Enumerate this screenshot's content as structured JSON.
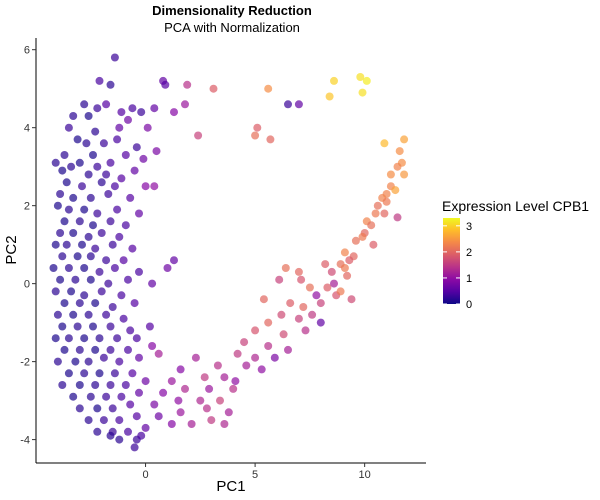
{
  "chart_data": {
    "type": "scatter",
    "title": "Dimensionality Reduction",
    "subtitle": "PCA with Normalization",
    "xlabel": "PC1",
    "ylabel": "PC2",
    "xlim": [
      -5,
      12.8
    ],
    "ylim": [
      -4.6,
      6.3
    ],
    "xticks": [
      0,
      5,
      10
    ],
    "yticks": [
      -4,
      -2,
      0,
      2,
      4,
      6
    ],
    "grid": false,
    "color_scale": {
      "name": "plasma",
      "title": "Expression Level CPB1",
      "range": [
        0,
        3.3
      ],
      "ticks": [
        0,
        1,
        2,
        3
      ],
      "stops": [
        "#0d0887",
        "#5302a3",
        "#8b0aa5",
        "#b83289",
        "#db5c68",
        "#f48849",
        "#febc2a",
        "#f0f921"
      ]
    },
    "legend_position": "right",
    "points": [
      [
        -1.4,
        5.8,
        0.3
      ],
      [
        -2.1,
        5.2,
        0.4
      ],
      [
        -1.6,
        5.1,
        0.2
      ],
      [
        0.8,
        5.2,
        0.6
      ],
      [
        0.9,
        5.1,
        0.5
      ],
      [
        1.9,
        5.1,
        1.4
      ],
      [
        3.1,
        5.0,
        1.9
      ],
      [
        5.6,
        5.0,
        2.4
      ],
      [
        8.6,
        5.2,
        3.0
      ],
      [
        9.8,
        5.3,
        3.1
      ],
      [
        10.1,
        5.2,
        3.2
      ],
      [
        8.4,
        4.8,
        2.9
      ],
      [
        9.9,
        4.9,
        3.1
      ],
      [
        6.5,
        4.6,
        0.3
      ],
      [
        7.0,
        4.6,
        0.6
      ],
      [
        -2.8,
        4.6,
        0.2
      ],
      [
        -2.2,
        4.5,
        0.3
      ],
      [
        -1.8,
        4.6,
        0.5
      ],
      [
        -0.6,
        4.5,
        0.4
      ],
      [
        -0.2,
        4.4,
        0.3
      ],
      [
        0.4,
        4.5,
        0.6
      ],
      [
        1.3,
        4.4,
        0.9
      ],
      [
        1.8,
        4.6,
        1.1
      ],
      [
        -3.3,
        4.3,
        0.2
      ],
      [
        -2.6,
        4.3,
        0.1
      ],
      [
        -1.1,
        4.4,
        0.5
      ],
      [
        -0.8,
        4.2,
        0.7
      ],
      [
        -3.5,
        4.0,
        0.3
      ],
      [
        -2.3,
        3.9,
        0.2
      ],
      [
        -1.2,
        4.0,
        0.6
      ],
      [
        0.1,
        4.0,
        0.8
      ],
      [
        2.4,
        3.8,
        1.6
      ],
      [
        5.1,
        4.0,
        1.9
      ],
      [
        5.0,
        3.8,
        2.1
      ],
      [
        5.7,
        3.7,
        2.0
      ],
      [
        11.8,
        3.7,
        2.6
      ],
      [
        11.6,
        3.4,
        2.4
      ],
      [
        10.9,
        3.6,
        2.8
      ],
      [
        -3.1,
        3.7,
        0.1
      ],
      [
        -2.7,
        3.6,
        0.2
      ],
      [
        -1.9,
        3.6,
        0.3
      ],
      [
        -1.3,
        3.7,
        0.4
      ],
      [
        -0.4,
        3.5,
        0.3
      ],
      [
        0.5,
        3.4,
        0.8
      ],
      [
        -3.7,
        3.3,
        0.2
      ],
      [
        -2.4,
        3.3,
        0.1
      ],
      [
        -0.9,
        3.3,
        0.5
      ],
      [
        -3.4,
        3.0,
        0.2
      ],
      [
        -3.0,
        3.1,
        0.1
      ],
      [
        -2.2,
        3.0,
        0.3
      ],
      [
        -1.6,
        3.1,
        0.4
      ],
      [
        -0.1,
        3.2,
        0.7
      ],
      [
        11.7,
        3.1,
        2.4
      ],
      [
        11.5,
        3.0,
        2.3
      ],
      [
        -4.1,
        3.1,
        0.2
      ],
      [
        -3.8,
        2.9,
        0.1
      ],
      [
        -2.6,
        2.8,
        0.2
      ],
      [
        -1.8,
        2.8,
        0.3
      ],
      [
        -1.1,
        2.7,
        0.5
      ],
      [
        -0.5,
        2.9,
        0.6
      ],
      [
        11.8,
        2.8,
        2.5
      ],
      [
        11.2,
        2.8,
        2.4
      ],
      [
        -3.6,
        2.6,
        0.1
      ],
      [
        -2.9,
        2.5,
        0.3
      ],
      [
        -2.0,
        2.6,
        0.2
      ],
      [
        -1.4,
        2.5,
        0.4
      ],
      [
        0.0,
        2.5,
        0.9
      ],
      [
        0.4,
        2.5,
        1.0
      ],
      [
        11.2,
        2.5,
        2.3
      ],
      [
        11.4,
        2.4,
        2.6
      ],
      [
        11.0,
        2.3,
        2.3
      ],
      [
        -3.9,
        2.3,
        0.2
      ],
      [
        -3.3,
        2.2,
        0.1
      ],
      [
        -2.5,
        2.2,
        0.2
      ],
      [
        -1.7,
        2.3,
        0.3
      ],
      [
        -0.7,
        2.2,
        0.5
      ],
      [
        10.8,
        2.2,
        2.3
      ],
      [
        11.0,
        2.1,
        2.2
      ],
      [
        10.6,
        2.0,
        2.1
      ],
      [
        -4.0,
        2.0,
        0.1
      ],
      [
        -3.5,
        1.9,
        0.2
      ],
      [
        -2.8,
        1.9,
        0.1
      ],
      [
        -2.2,
        1.8,
        0.3
      ],
      [
        -1.3,
        1.9,
        0.4
      ],
      [
        -0.3,
        1.8,
        0.6
      ],
      [
        10.5,
        1.8,
        2.2
      ],
      [
        10.9,
        1.8,
        2.0
      ],
      [
        11.5,
        1.7,
        1.5
      ],
      [
        -3.7,
        1.6,
        0.1
      ],
      [
        -3.0,
        1.6,
        0.2
      ],
      [
        -2.4,
        1.5,
        0.1
      ],
      [
        -1.6,
        1.6,
        0.3
      ],
      [
        -0.9,
        1.5,
        0.4
      ],
      [
        10.1,
        1.6,
        2.3
      ],
      [
        10.3,
        1.5,
        2.1
      ],
      [
        -3.9,
        1.3,
        0.2
      ],
      [
        -3.3,
        1.3,
        0.1
      ],
      [
        -2.6,
        1.2,
        0.2
      ],
      [
        -2.0,
        1.3,
        0.3
      ],
      [
        -1.2,
        1.2,
        0.4
      ],
      [
        10.0,
        1.3,
        2.0
      ],
      [
        9.9,
        1.2,
        2.2
      ],
      [
        -4.1,
        1.0,
        0.1
      ],
      [
        -3.6,
        1.0,
        0.2
      ],
      [
        -2.9,
        1.0,
        0.1
      ],
      [
        -2.3,
        0.9,
        0.3
      ],
      [
        -1.5,
        1.0,
        0.3
      ],
      [
        -0.6,
        0.9,
        0.5
      ],
      [
        9.6,
        1.1,
        2.1
      ],
      [
        10.4,
        1.0,
        1.9
      ],
      [
        -3.8,
        0.7,
        0.2
      ],
      [
        -3.1,
        0.7,
        0.1
      ],
      [
        -2.5,
        0.7,
        0.2
      ],
      [
        -1.8,
        0.6,
        0.3
      ],
      [
        -1.0,
        0.6,
        0.5
      ],
      [
        1.3,
        0.6,
        0.6
      ],
      [
        9.1,
        0.8,
        2.3
      ],
      [
        9.5,
        0.7,
        2.0
      ],
      [
        9.3,
        0.6,
        1.9
      ],
      [
        -4.2,
        0.4,
        0.1
      ],
      [
        -3.5,
        0.4,
        0.2
      ],
      [
        -2.8,
        0.4,
        0.1
      ],
      [
        -2.1,
        0.3,
        0.3
      ],
      [
        -1.4,
        0.4,
        0.4
      ],
      [
        -0.3,
        0.3,
        0.4
      ],
      [
        1.0,
        0.4,
        0.7
      ],
      [
        8.2,
        0.5,
        1.9
      ],
      [
        8.9,
        0.5,
        2.1
      ],
      [
        9.1,
        0.4,
        2.2
      ],
      [
        -3.9,
        0.1,
        0.1
      ],
      [
        -3.2,
        0.1,
        0.2
      ],
      [
        -2.5,
        0.1,
        0.1
      ],
      [
        -1.7,
        0.0,
        0.3
      ],
      [
        -0.8,
        0.1,
        0.4
      ],
      [
        0.3,
        0.0,
        0.6
      ],
      [
        6.4,
        0.4,
        2.1
      ],
      [
        7.0,
        0.3,
        2.0
      ],
      [
        8.5,
        0.3,
        1.7
      ],
      [
        9.2,
        0.2,
        2.0
      ],
      [
        -4.1,
        -0.2,
        0.2
      ],
      [
        -3.4,
        -0.2,
        0.1
      ],
      [
        -2.8,
        -0.3,
        0.2
      ],
      [
        -2.0,
        -0.2,
        0.3
      ],
      [
        -1.1,
        -0.3,
        0.4
      ],
      [
        6.1,
        0.1,
        1.6
      ],
      [
        7.1,
        0.1,
        1.8
      ],
      [
        7.5,
        -0.1,
        2.1
      ],
      [
        8.3,
        -0.1,
        1.9
      ],
      [
        8.6,
        0.0,
        1.2
      ],
      [
        -3.7,
        -0.5,
        0.1
      ],
      [
        -3.0,
        -0.5,
        0.2
      ],
      [
        -2.3,
        -0.5,
        0.1
      ],
      [
        -1.5,
        -0.6,
        0.3
      ],
      [
        -0.5,
        -0.5,
        0.5
      ],
      [
        8.7,
        -0.3,
        1.8
      ],
      [
        8.9,
        -0.2,
        2.2
      ],
      [
        9.4,
        -0.4,
        1.7
      ],
      [
        7.8,
        -0.3,
        1.0
      ],
      [
        -4.0,
        -0.8,
        0.2
      ],
      [
        -3.3,
        -0.8,
        0.1
      ],
      [
        -2.6,
        -0.8,
        0.2
      ],
      [
        -1.8,
        -0.8,
        0.3
      ],
      [
        -1.0,
        -0.9,
        0.4
      ],
      [
        5.4,
        -0.4,
        2.0
      ],
      [
        6.6,
        -0.5,
        1.9
      ],
      [
        7.2,
        -0.6,
        2.0
      ],
      [
        8.0,
        -0.5,
        1.6
      ],
      [
        -3.8,
        -1.1,
        0.1
      ],
      [
        -3.1,
        -1.1,
        0.2
      ],
      [
        -2.4,
        -1.1,
        0.1
      ],
      [
        -1.6,
        -1.1,
        0.3
      ],
      [
        -0.7,
        -1.2,
        0.4
      ],
      [
        0.2,
        -1.1,
        0.5
      ],
      [
        6.2,
        -0.8,
        1.7
      ],
      [
        7.0,
        -0.9,
        1.6
      ],
      [
        7.6,
        -0.8,
        1.5
      ],
      [
        8.0,
        -1.0,
        0.6
      ],
      [
        5.6,
        -1.0,
        2.0
      ],
      [
        -4.1,
        -1.4,
        0.1
      ],
      [
        -3.5,
        -1.4,
        0.2
      ],
      [
        -2.8,
        -1.4,
        0.1
      ],
      [
        -2.1,
        -1.4,
        0.2
      ],
      [
        -1.3,
        -1.4,
        0.3
      ],
      [
        -0.4,
        -1.4,
        0.4
      ],
      [
        5.0,
        -1.2,
        1.8
      ],
      [
        6.3,
        -1.3,
        1.7
      ],
      [
        7.3,
        -1.2,
        1.4
      ],
      [
        -3.7,
        -1.7,
        0.1
      ],
      [
        -3.0,
        -1.7,
        0.2
      ],
      [
        -2.3,
        -1.7,
        0.1
      ],
      [
        -1.6,
        -1.7,
        0.3
      ],
      [
        -0.8,
        -1.7,
        0.4
      ],
      [
        0.3,
        -1.6,
        0.9
      ],
      [
        4.5,
        -1.5,
        1.6
      ],
      [
        5.6,
        -1.6,
        1.4
      ],
      [
        6.5,
        -1.7,
        1.2
      ],
      [
        -4.0,
        -2.0,
        0.2
      ],
      [
        -3.2,
        -2.0,
        0.1
      ],
      [
        -2.6,
        -2.0,
        0.2
      ],
      [
        -1.9,
        -1.9,
        0.3
      ],
      [
        -1.2,
        -2.0,
        0.4
      ],
      [
        -0.3,
        -1.9,
        0.6
      ],
      [
        0.6,
        -1.8,
        1.2
      ],
      [
        2.3,
        -1.9,
        1.2
      ],
      [
        4.2,
        -1.8,
        1.5
      ],
      [
        5.0,
        -1.9,
        1.3
      ],
      [
        5.9,
        -1.9,
        0.8
      ],
      [
        -3.5,
        -2.3,
        0.1
      ],
      [
        -2.8,
        -2.3,
        0.2
      ],
      [
        -2.1,
        -2.3,
        0.1
      ],
      [
        -1.4,
        -2.3,
        0.3
      ],
      [
        -0.6,
        -2.3,
        0.5
      ],
      [
        1.6,
        -2.2,
        0.9
      ],
      [
        3.3,
        -2.1,
        1.4
      ],
      [
        4.6,
        -2.1,
        1.2
      ],
      [
        5.3,
        -2.2,
        1.0
      ],
      [
        -3.8,
        -2.6,
        0.2
      ],
      [
        -3.0,
        -2.6,
        0.1
      ],
      [
        -2.3,
        -2.6,
        0.2
      ],
      [
        -1.6,
        -2.6,
        0.3
      ],
      [
        -0.9,
        -2.6,
        0.4
      ],
      [
        0.0,
        -2.5,
        0.7
      ],
      [
        1.2,
        -2.5,
        1.1
      ],
      [
        2.7,
        -2.4,
        1.5
      ],
      [
        3.6,
        -2.4,
        1.2
      ],
      [
        4.1,
        -2.5,
        1.0
      ],
      [
        -3.3,
        -2.9,
        0.1
      ],
      [
        -2.5,
        -2.9,
        0.2
      ],
      [
        -1.8,
        -2.9,
        0.3
      ],
      [
        -1.1,
        -2.9,
        0.4
      ],
      [
        -0.3,
        -2.8,
        0.6
      ],
      [
        0.8,
        -2.8,
        0.9
      ],
      [
        1.8,
        -2.7,
        1.3
      ],
      [
        2.9,
        -2.7,
        1.1
      ],
      [
        4.0,
        -2.7,
        1.4
      ],
      [
        -3.0,
        -3.2,
        0.2
      ],
      [
        -2.2,
        -3.2,
        0.1
      ],
      [
        -1.5,
        -3.2,
        0.3
      ],
      [
        -0.7,
        -3.1,
        0.5
      ],
      [
        0.4,
        -3.1,
        0.8
      ],
      [
        1.5,
        -3.0,
        1.0
      ],
      [
        2.5,
        -3.0,
        1.3
      ],
      [
        3.4,
        -3.0,
        1.6
      ],
      [
        -2.6,
        -3.5,
        0.2
      ],
      [
        -1.9,
        -3.5,
        0.3
      ],
      [
        -1.2,
        -3.5,
        0.4
      ],
      [
        -0.4,
        -3.4,
        0.5
      ],
      [
        0.6,
        -3.4,
        0.7
      ],
      [
        1.6,
        -3.3,
        1.1
      ],
      [
        2.8,
        -3.2,
        1.4
      ],
      [
        3.8,
        -3.3,
        1.2
      ],
      [
        -2.2,
        -3.8,
        0.2
      ],
      [
        -1.5,
        -3.8,
        0.3
      ],
      [
        -0.8,
        -3.8,
        0.4
      ],
      [
        0.0,
        -3.7,
        0.6
      ],
      [
        1.2,
        -3.6,
        0.9
      ],
      [
        2.1,
        -3.6,
        1.2
      ],
      [
        -1.2,
        -4.0,
        0.2
      ],
      [
        -0.4,
        -4.0,
        0.3
      ],
      [
        -0.2,
        -3.9,
        0.4
      ],
      [
        -0.5,
        -4.2,
        0.3
      ],
      [
        -1.6,
        -3.9,
        0.2
      ],
      [
        3.0,
        -3.5,
        1.5
      ],
      [
        3.6,
        -3.6,
        1.3
      ]
    ]
  }
}
